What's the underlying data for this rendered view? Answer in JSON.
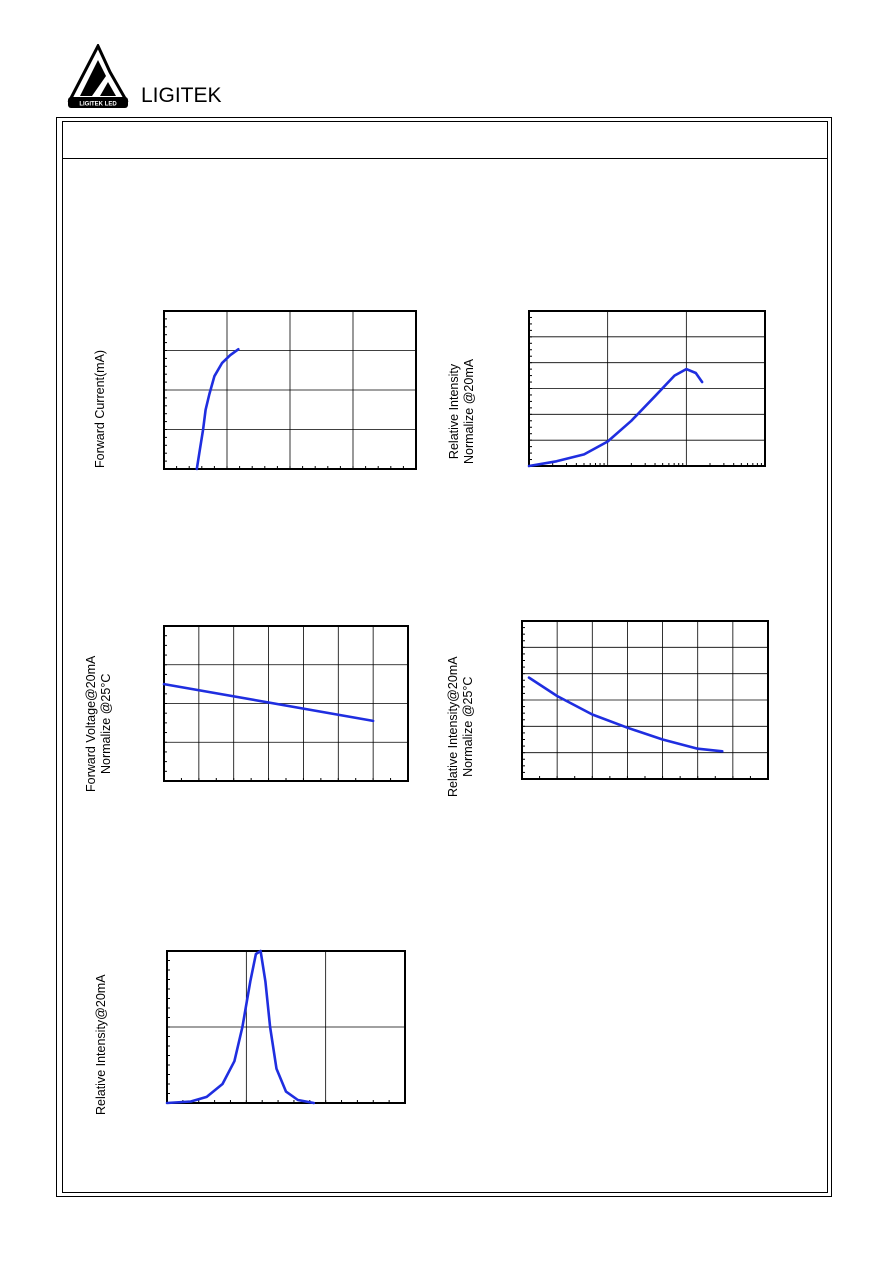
{
  "header": {
    "brand_name": "LIGITEK",
    "logo_text": "LIGITEK LED"
  },
  "colors": {
    "curve": "#1f2ee0",
    "frame": "#000000"
  },
  "charts": {
    "forward_current": {
      "ylabel_line1": "Forward Current(mA)",
      "ylabel_line2": ""
    },
    "relative_intensity_current": {
      "ylabel_line1": "Relative Intensity",
      "ylabel_line2": "Normalize @20mA"
    },
    "forward_voltage_temp": {
      "ylabel_line1": "Forward Voltage@20mA",
      "ylabel_line2": "Normalize @25°C"
    },
    "relative_intensity_temp": {
      "ylabel_line1": "Relative Intensity@20mA",
      "ylabel_line2": "Normalize @25°C"
    },
    "spectrum": {
      "ylabel_line1": "Relative Intensity@20mA",
      "ylabel_line2": ""
    }
  },
  "chart_data": [
    {
      "type": "line",
      "id": "forward_current",
      "title": "",
      "xlabel": "",
      "ylabel": "Forward Current(mA)",
      "grid": true,
      "xlim": [
        0,
        4
      ],
      "ylim": [
        0,
        4
      ],
      "series": [
        {
          "x": [
            0.52,
            0.56,
            0.62,
            0.66,
            0.72,
            0.8,
            0.92,
            1.05,
            1.18
          ],
          "y": [
            0.0,
            0.4,
            1.0,
            1.5,
            1.9,
            2.35,
            2.68,
            2.88,
            3.03
          ]
        }
      ]
    },
    {
      "type": "line",
      "id": "relative_intensity_current",
      "title": "",
      "xlabel": "",
      "ylabel": "Relative Intensity Normalize @20mA",
      "grid": true,
      "log_x": true,
      "xlim": [
        0,
        3
      ],
      "ylim": [
        0,
        6
      ],
      "series": [
        {
          "x": [
            0.0,
            0.35,
            0.7,
            1.0,
            1.3,
            1.6,
            1.85,
            2.0,
            2.12,
            2.2
          ],
          "y": [
            0.0,
            0.18,
            0.45,
            0.95,
            1.75,
            2.7,
            3.5,
            3.75,
            3.6,
            3.25
          ]
        }
      ]
    },
    {
      "type": "line",
      "id": "forward_voltage_temp",
      "title": "",
      "xlabel": "",
      "ylabel": "Forward Voltage@20mA Normalize @25°C",
      "grid": true,
      "xlim": [
        0,
        7
      ],
      "ylim": [
        0,
        4
      ],
      "series": [
        {
          "x": [
            0,
            6
          ],
          "y": [
            2.5,
            1.55
          ]
        }
      ]
    },
    {
      "type": "line",
      "id": "relative_intensity_temp",
      "title": "",
      "xlabel": "",
      "ylabel": "Relative Intensity@20mA Normalize @25°C",
      "grid": true,
      "xlim": [
        0,
        7
      ],
      "ylim": [
        0,
        6
      ],
      "series": [
        {
          "x": [
            0.2,
            1.0,
            2.0,
            3.0,
            4.0,
            5.0,
            5.7
          ],
          "y": [
            3.85,
            3.15,
            2.45,
            1.95,
            1.5,
            1.15,
            1.05
          ]
        }
      ]
    },
    {
      "type": "line",
      "id": "spectrum",
      "title": "",
      "xlabel": "",
      "ylabel": "Relative Intensity@20mA",
      "grid": true,
      "xlim": [
        0,
        3
      ],
      "ylim": [
        0,
        2
      ],
      "series": [
        {
          "x": [
            0.0,
            0.3,
            0.5,
            0.7,
            0.85,
            0.95,
            1.05,
            1.12,
            1.18,
            1.24,
            1.3,
            1.38,
            1.5,
            1.65,
            1.85
          ],
          "y": [
            0.0,
            0.02,
            0.08,
            0.25,
            0.55,
            1.0,
            1.6,
            1.96,
            2.0,
            1.6,
            1.0,
            0.45,
            0.15,
            0.04,
            0.0
          ]
        }
      ]
    }
  ]
}
